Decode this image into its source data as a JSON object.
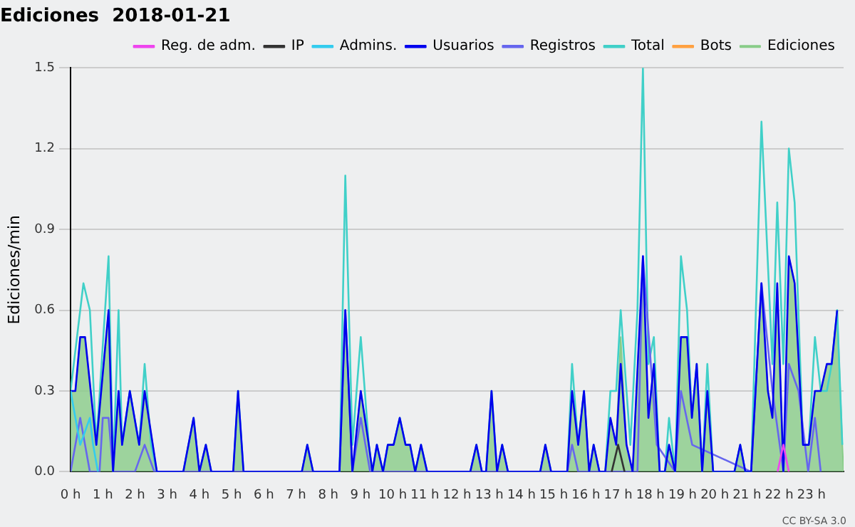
{
  "chart_data": {
    "type": "line",
    "title": "Ediciones  2018-01-21",
    "ylabel": "Ediciones/min",
    "xlim": [
      0,
      24
    ],
    "ylim": [
      0,
      1.5
    ],
    "xticks": [
      {
        "value": 0,
        "label": "0 h"
      },
      {
        "value": 1,
        "label": "1 h"
      },
      {
        "value": 2,
        "label": "2 h"
      },
      {
        "value": 3,
        "label": "3 h"
      },
      {
        "value": 4,
        "label": "4 h"
      },
      {
        "value": 5,
        "label": "5 h"
      },
      {
        "value": 6,
        "label": "6 h"
      },
      {
        "value": 7,
        "label": "7 h"
      },
      {
        "value": 8,
        "label": "8 h"
      },
      {
        "value": 9,
        "label": "9 h"
      },
      {
        "value": 10,
        "label": "10 h"
      },
      {
        "value": 11,
        "label": "11 h"
      },
      {
        "value": 12,
        "label": "12 h"
      },
      {
        "value": 13,
        "label": "13 h"
      },
      {
        "value": 14,
        "label": "14 h"
      },
      {
        "value": 15,
        "label": "15 h"
      },
      {
        "value": 16,
        "label": "16 h"
      },
      {
        "value": 17,
        "label": "17 h"
      },
      {
        "value": 18,
        "label": "18 h"
      },
      {
        "value": 19,
        "label": "19 h"
      },
      {
        "value": 20,
        "label": "20 h"
      },
      {
        "value": 21,
        "label": "21 h"
      },
      {
        "value": 22,
        "label": "22 h"
      },
      {
        "value": 23,
        "label": "23 h"
      }
    ],
    "yticks": [
      {
        "value": 0,
        "label": "0.0"
      },
      0.3,
      0.6,
      0.9,
      1.2,
      1.5
    ],
    "grid": "y",
    "legend": "top right",
    "marker": "none",
    "line_style": "solid",
    "annotations": [
      "CC BY-SA 3.0"
    ],
    "series": [
      {
        "name": "Reg. de adm.",
        "type": "line",
        "color": "#ee44ee",
        "x": [
          21.95,
          22.13,
          22.3
        ],
        "values": [
          0,
          0.1,
          0
        ]
      },
      {
        "name": "IP",
        "type": "line",
        "color": "#333333",
        "x": [
          16.8,
          17.0,
          17.2
        ],
        "values": [
          0,
          0.1,
          0
        ]
      },
      {
        "name": "Admins.",
        "type": "line",
        "color": "#33ccee",
        "x": [
          0,
          0.3,
          0.6,
          0.7,
          0.85
        ],
        "values": [
          0.3,
          0.1,
          0.2,
          0.1,
          0
        ]
      },
      {
        "name": "Usuarios",
        "type": "line",
        "color": "#0000ee",
        "x": [
          0,
          0.15,
          0.3,
          0.45,
          0.8,
          1.18,
          1.32,
          1.49,
          1.6,
          1.84,
          2.13,
          2.3,
          2.68,
          3.5,
          3.82,
          4.0,
          4.2,
          4.37,
          5.05,
          5.2,
          5.37,
          7.18,
          7.35,
          7.53,
          8.35,
          8.53,
          8.75,
          9.01,
          9.26,
          9.37,
          9.51,
          9.7,
          9.85,
          10.03,
          10.22,
          10.4,
          10.54,
          10.7,
          10.88,
          11.07,
          12.41,
          12.6,
          12.77,
          12.9,
          13.07,
          13.24,
          13.4,
          13.58,
          14.58,
          14.74,
          14.92,
          15.42,
          15.57,
          15.76,
          15.94,
          16.1,
          16.24,
          16.42,
          16.6,
          16.76,
          16.94,
          17.08,
          17.26,
          17.45,
          17.77,
          17.94,
          18.11,
          18.29,
          18.45,
          18.58,
          18.77,
          18.95,
          19.14,
          19.29,
          19.44,
          19.61,
          19.77,
          19.95,
          20.61,
          20.79,
          20.95,
          21.13,
          21.45,
          21.65,
          21.79,
          21.94,
          22.13,
          22.3,
          22.48,
          22.74,
          22.92,
          23.11,
          23.29,
          23.48,
          23.63,
          23.8
        ],
        "values": [
          0.3,
          0.3,
          0.5,
          0.5,
          0.1,
          0.6,
          0,
          0.3,
          0.1,
          0.3,
          0.1,
          0.3,
          0,
          0,
          0.2,
          0,
          0.1,
          0,
          0,
          0.3,
          0,
          0,
          0.1,
          0,
          0,
          0.6,
          0,
          0.3,
          0.1,
          0,
          0.1,
          0,
          0.1,
          0.1,
          0.2,
          0.1,
          0.1,
          0,
          0.1,
          0,
          0,
          0.1,
          0,
          0,
          0.3,
          0,
          0.1,
          0,
          0,
          0.1,
          0,
          0,
          0.3,
          0.1,
          0.3,
          0,
          0.1,
          0,
          0,
          0.2,
          0.1,
          0.4,
          0.1,
          0,
          0.8,
          0.2,
          0.4,
          0,
          0,
          0.1,
          0,
          0.5,
          0.5,
          0.2,
          0.4,
          0,
          0.3,
          0,
          0,
          0.1,
          0,
          0,
          0.7,
          0.3,
          0.2,
          0.7,
          0,
          0.8,
          0.7,
          0.1,
          0.1,
          0.3,
          0.3,
          0.4,
          0.4,
          0.6
        ]
      },
      {
        "name": "Registros",
        "type": "line",
        "color": "#6666ee",
        "x": [
          0,
          0.3,
          0.6,
          0.9,
          1.0,
          1.18,
          1.32,
          2.0,
          2.3,
          2.6,
          8.35,
          8.53,
          8.75,
          9.01,
          9.3,
          15.42,
          15.57,
          15.76,
          17.6,
          17.77,
          18.2,
          18.77,
          18.95,
          19.3,
          21.13,
          21.45,
          21.79,
          22.13,
          22.3,
          22.6,
          22.9,
          23.11,
          23.29
        ],
        "values": [
          0,
          0.2,
          0,
          0,
          0.2,
          0.2,
          0,
          0,
          0.1,
          0,
          0,
          0.6,
          0,
          0.2,
          0,
          0,
          0.1,
          0,
          0,
          0.8,
          0.1,
          0,
          0.3,
          0.1,
          0,
          0.7,
          0.3,
          0,
          0.4,
          0.3,
          0,
          0.2,
          0
        ]
      },
      {
        "name": "Total",
        "type": "line",
        "color": "#40d0c8",
        "x": [
          0,
          0.4,
          0.6,
          0.8,
          1.18,
          1.32,
          1.49,
          1.6,
          1.84,
          2.13,
          2.3,
          2.5,
          2.68,
          3.5,
          3.82,
          4.0,
          4.2,
          4.37,
          5.05,
          5.2,
          5.37,
          7.18,
          7.35,
          7.53,
          8.35,
          8.53,
          8.75,
          9.01,
          9.26,
          9.37,
          9.51,
          9.7,
          9.85,
          10.03,
          10.22,
          10.4,
          10.54,
          10.7,
          10.88,
          11.07,
          12.41,
          12.6,
          12.77,
          12.9,
          13.07,
          13.24,
          13.4,
          13.58,
          14.58,
          14.74,
          14.92,
          15.42,
          15.57,
          15.76,
          15.94,
          16.1,
          16.24,
          16.42,
          16.6,
          16.76,
          16.94,
          17.08,
          17.26,
          17.38,
          17.6,
          17.77,
          17.94,
          18.11,
          18.29,
          18.45,
          18.58,
          18.77,
          18.95,
          19.14,
          19.29,
          19.44,
          19.61,
          19.77,
          19.95,
          20.61,
          20.79,
          20.95,
          21.13,
          21.45,
          21.79,
          21.94,
          22.13,
          22.3,
          22.48,
          22.74,
          22.92,
          23.11,
          23.29,
          23.48,
          23.63,
          23.8,
          23.96
        ],
        "values": [
          0.3,
          0.7,
          0.6,
          0.1,
          0.8,
          0,
          0.6,
          0.1,
          0.3,
          0.1,
          0.4,
          0.1,
          0,
          0,
          0.2,
          0,
          0.1,
          0,
          0,
          0.3,
          0,
          0,
          0.1,
          0,
          0,
          1.1,
          0.1,
          0.5,
          0.1,
          0,
          0.1,
          0,
          0.1,
          0.1,
          0.2,
          0.1,
          0.1,
          0,
          0.1,
          0,
          0,
          0.1,
          0,
          0,
          0.3,
          0,
          0.1,
          0,
          0,
          0.1,
          0,
          0,
          0.4,
          0.1,
          0.3,
          0,
          0.1,
          0,
          0,
          0.3,
          0.3,
          0.6,
          0.3,
          0.1,
          0.6,
          1.5,
          0.4,
          0.5,
          0,
          0,
          0.2,
          0,
          0.8,
          0.6,
          0.2,
          0.4,
          0,
          0.4,
          0,
          0,
          0.1,
          0,
          0,
          1.3,
          0.4,
          1.0,
          0.4,
          1.2,
          1.0,
          0.1,
          0.1,
          0.5,
          0.3,
          0.3,
          0.4,
          0.6,
          0.1
        ]
      },
      {
        "name": "Bots",
        "type": "line",
        "color": "#ffa040"
      },
      {
        "name": "Ediciones",
        "type": "area",
        "color": "#88cc88",
        "x": [
          0,
          0.15,
          0.3,
          0.45,
          0.8,
          1.18,
          1.32,
          1.49,
          1.6,
          1.84,
          2.13,
          2.3,
          2.68,
          3.5,
          3.82,
          4.0,
          4.2,
          4.37,
          5.05,
          5.2,
          5.37,
          7.18,
          7.35,
          7.53,
          8.35,
          8.53,
          8.75,
          9.01,
          9.26,
          9.37,
          9.51,
          9.7,
          9.85,
          10.03,
          10.22,
          10.4,
          10.54,
          10.7,
          10.88,
          11.07,
          12.41,
          12.6,
          12.77,
          12.9,
          13.07,
          13.24,
          13.4,
          13.58,
          14.58,
          14.74,
          14.92,
          15.42,
          15.57,
          15.76,
          15.94,
          16.1,
          16.24,
          16.42,
          16.6,
          16.76,
          16.94,
          17.08,
          17.26,
          17.45,
          17.77,
          17.94,
          18.11,
          18.29,
          18.45,
          18.58,
          18.77,
          18.95,
          19.14,
          19.29,
          19.44,
          19.61,
          19.77,
          19.95,
          20.61,
          20.79,
          20.95,
          21.13,
          21.45,
          21.65,
          21.79,
          21.94,
          22.13,
          22.3,
          22.48,
          22.74,
          22.92,
          23.11,
          23.29,
          23.48,
          23.63,
          23.8,
          23.96,
          24
        ],
        "values": [
          0.3,
          0.3,
          0.5,
          0.5,
          0.1,
          0.6,
          0,
          0.3,
          0.1,
          0.3,
          0.1,
          0.3,
          0,
          0,
          0.2,
          0,
          0.1,
          0,
          0,
          0.3,
          0,
          0,
          0.1,
          0,
          0,
          0.6,
          0,
          0.3,
          0.1,
          0,
          0.1,
          0,
          0.1,
          0.1,
          0.2,
          0.1,
          0.1,
          0,
          0.1,
          0,
          0,
          0.1,
          0,
          0,
          0.3,
          0,
          0.1,
          0,
          0,
          0.1,
          0,
          0,
          0.3,
          0.1,
          0.3,
          0,
          0.1,
          0,
          0,
          0.2,
          0.1,
          0.5,
          0.1,
          0,
          0.8,
          0.2,
          0.4,
          0,
          0,
          0.1,
          0,
          0.5,
          0.5,
          0.2,
          0.4,
          0,
          0.3,
          0,
          0,
          0.1,
          0,
          0,
          0.7,
          0.3,
          0.2,
          0.7,
          0,
          0.8,
          0.7,
          0.1,
          0.1,
          0.3,
          0.3,
          0.4,
          0.4,
          0.6,
          0.1,
          0
        ]
      }
    ]
  }
}
